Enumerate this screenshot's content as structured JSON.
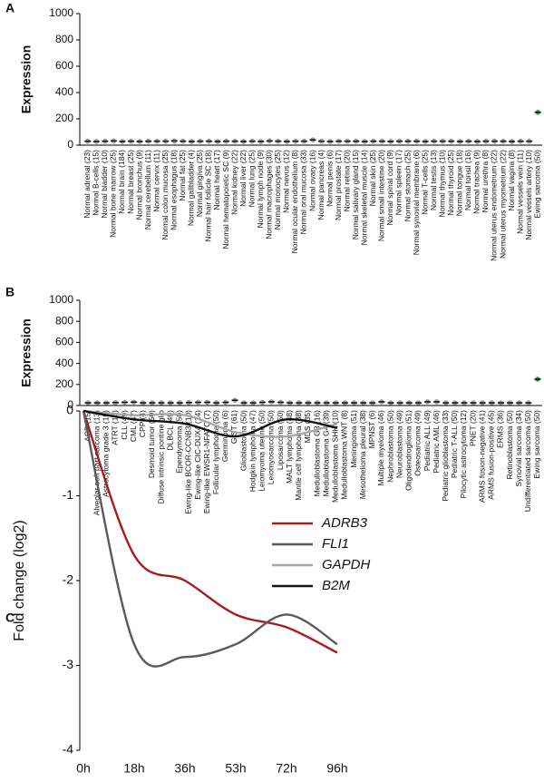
{
  "chart_data": [
    {
      "type": "strip",
      "panel_label": "A",
      "y_label": "Expression",
      "categories": [
        "Normal adrenal (23)",
        "Normal B-cells (15)",
        "Normal bladder (10)",
        "Normal bone marrow (25)",
        "Normal brain (184)",
        "Normal breast (25)",
        "Normal bronchus (9)",
        "Normal cerebellum (11)",
        "Normal cervix (11)",
        "Normal colon mucosa (25)",
        "Normal esophagus (18)",
        "Normal fat (25)",
        "Normal gallbladder (4)",
        "Normal gingiva (25)",
        "Normal hair follicle SC (18)",
        "Normal heart (17)",
        "Normal hematopoietic SC (9)",
        "Normal kidney (22)",
        "Normal liver (22)",
        "Normal lung (25)",
        "Normal lymph node (9)",
        "Normal macrophages (30)",
        "Normal monocytes (25)",
        "Normal nevus (12)",
        "Normal ocular endothelium (8)",
        "Normal oral mucosa (33)",
        "Normal ovary (16)",
        "Normal pancreas (4)",
        "Normal penis (6)",
        "Normal prostate (17)",
        "Normal retina (20)",
        "Normal salivary gland (15)",
        "Normal skeletal muscle (14)",
        "Normal skin (25)",
        "Normal small intestine (20)",
        "Normal spinal cord (9)",
        "Normal spleen (17)",
        "Normal stomach (25)",
        "Normal synovial membrane (6)",
        "Normal T-cells (25)",
        "Normal testis (13)",
        "Normal thymus (10)",
        "Normal thyroid (25)",
        "Normal tongue (18)",
        "Normal tonsil (16)",
        "Normal trachea (9)",
        "Normal urethra (8)",
        "Normal uterus endometrium (22)",
        "Normal uterus myometrium (22)",
        "Normal vagina (8)",
        "Normal vessels vein (11)",
        "Normal vessels artery (10)",
        "Ewing sarcoma (50)"
      ],
      "values": [
        30,
        28,
        30,
        32,
        28,
        30,
        28,
        30,
        30,
        30,
        32,
        30,
        28,
        30,
        30,
        28,
        30,
        30,
        28,
        30,
        28,
        32,
        30,
        28,
        30,
        30,
        40,
        30,
        28,
        30,
        30,
        30,
        28,
        30,
        30,
        28,
        30,
        30,
        30,
        28,
        30,
        30,
        30,
        28,
        30,
        28,
        30,
        30,
        30,
        28,
        30,
        30,
        250
      ],
      "colors": [
        "#a0a0a0",
        "#a0a0a0",
        "#a0a0a0",
        "#a0a0a0",
        "#a0a0a0",
        "#a0a0a0",
        "#a0a0a0",
        "#a0a0a0",
        "#a0a0a0",
        "#a0a0a0",
        "#a0a0a0",
        "#a0a0a0",
        "#a0a0a0",
        "#a0a0a0",
        "#a0a0a0",
        "#a0a0a0",
        "#a0a0a0",
        "#a0a0a0",
        "#a0a0a0",
        "#a0a0a0",
        "#a0a0a0",
        "#a0a0a0",
        "#a0a0a0",
        "#a0a0a0",
        "#a0a0a0",
        "#a0a0a0",
        "#a0a0a0",
        "#a0a0a0",
        "#a0a0a0",
        "#a0a0a0",
        "#a0a0a0",
        "#a0a0a0",
        "#a0a0a0",
        "#a0a0a0",
        "#a0a0a0",
        "#a0a0a0",
        "#a0a0a0",
        "#a0a0a0",
        "#a0a0a0",
        "#a0a0a0",
        "#a0a0a0",
        "#a0a0a0",
        "#a0a0a0",
        "#a0a0a0",
        "#a0a0a0",
        "#a0a0a0",
        "#a0a0a0",
        "#a0a0a0",
        "#a0a0a0",
        "#a0a0a0",
        "#a0a0a0",
        "#a0a0a0",
        "#2ca642"
      ],
      "ylim": [
        0,
        1000
      ],
      "yticks": [
        0,
        200,
        400,
        600,
        800,
        1000
      ]
    },
    {
      "type": "strip",
      "panel_label": "B",
      "y_label": "Expression",
      "categories": [
        "ACP (15)",
        "Alveolar soft part sarcoma (13)",
        "Astrocytoma grade 3 (15)",
        "ATRT (16)",
        "CLL (49)",
        "CML (47)",
        "CPP (4)",
        "Desmoid tumor (50)",
        "Diffuse intrinsic pontine glio",
        "DLBCL (49)",
        "Ependymoma (50)",
        "Ewing-like BCOR-CCNB3 (10)",
        "Ewing-like CIC-DUX4 (14)",
        "Ewing-like EWSR1-NFATC (7)",
        "Follicular lymphoma (50)",
        "Germinoma (6)",
        "GIST (61)",
        "Glioblastoma (50)",
        "Hodgkin lymphoma (47)",
        "Leiomyoma uterine (50)",
        "Leiomyosarcoma (50)",
        "Liposarcoma (50)",
        "MALT lymphoma (48)",
        "Mantle cell lymphoma (38)",
        "MDS (35)",
        "Medulloblastoma G3 (16)",
        "Medulloblastoma G4 (39)",
        "Medulloblastoma SHH (10)",
        "Medulloblastoma WNT (8)",
        "Meningioma (51)",
        "Mesothelioma pleural (38)",
        "MPNST (6)",
        "Multiple myeloma (46)",
        "Nephroblastoma (50)",
        "Neuroblastoma (49)",
        "Oligodendroglioma (51)",
        "Osteosarcoma (49)",
        "Pediatric ALL (49)",
        "Pediatric AML (46)",
        "Pediatric glioblastoma (33)",
        "Pediatric T-ALL (50)",
        "Pilocytic astrocytoma (12)",
        "PNET (20)",
        "ARMS fusion-negative (41)",
        "ARMS fusion-positive (45)",
        "ERMS (36)",
        "Retinoblastoma (50)",
        "Synovial sarcoma (34)",
        "Undifferentiated sarcoma (50)",
        "Ewing sarcoma (50)"
      ],
      "values": [
        25,
        25,
        25,
        28,
        30,
        32,
        25,
        25,
        25,
        25,
        25,
        28,
        30,
        30,
        25,
        30,
        50,
        25,
        25,
        30,
        35,
        30,
        25,
        25,
        25,
        25,
        25,
        25,
        25,
        25,
        25,
        25,
        35,
        25,
        25,
        25,
        25,
        35,
        35,
        25,
        25,
        25,
        25,
        25,
        25,
        25,
        25,
        25,
        25,
        250
      ],
      "colors": [
        "#a0a0a0",
        "#a0a0a0",
        "#a0a0a0",
        "#a0a0a0",
        "#a0a0a0",
        "#a0a0a0",
        "#a0a0a0",
        "#a0a0a0",
        "#a0a0a0",
        "#a0a0a0",
        "#a0a0a0",
        "#a0a0a0",
        "#a0a0a0",
        "#a0a0a0",
        "#a0a0a0",
        "#a0a0a0",
        "#a0a0a0",
        "#a0a0a0",
        "#a0a0a0",
        "#a0a0a0",
        "#a0a0a0",
        "#a0a0a0",
        "#a0a0a0",
        "#a0a0a0",
        "#a0a0a0",
        "#a0a0a0",
        "#a0a0a0",
        "#a0a0a0",
        "#a0a0a0",
        "#a0a0a0",
        "#a0a0a0",
        "#a0a0a0",
        "#a0a0a0",
        "#a0a0a0",
        "#a0a0a0",
        "#a0a0a0",
        "#a0a0a0",
        "#a0a0a0",
        "#a0a0a0",
        "#a0a0a0",
        "#a0a0a0",
        "#a0a0a0",
        "#a0a0a0",
        "#a0a0a0",
        "#a0a0a0",
        "#a0a0a0",
        "#a0a0a0",
        "#a0a0a0",
        "#a0a0a0",
        "#2ca642"
      ],
      "ylim": [
        0,
        1000
      ],
      "yticks": [
        0,
        200,
        400,
        600,
        800,
        1000
      ]
    },
    {
      "type": "line",
      "panel_label": "C",
      "y_label": "Fold change (log2)",
      "categories": [
        "0h",
        "18h",
        "36h",
        "53h",
        "72h",
        "96h"
      ],
      "series": [
        {
          "name": "ADRB3",
          "color": "#a51d1d",
          "values": [
            0,
            -1.7,
            -2.0,
            -2.4,
            -2.55,
            -2.85
          ]
        },
        {
          "name": "FLI1",
          "color": "#5a5a5a",
          "values": [
            0,
            -2.75,
            -2.9,
            -2.75,
            -2.4,
            -2.75
          ]
        },
        {
          "name": "GAPDH",
          "color": "#a8a8a8",
          "values": [
            0,
            -0.05,
            -0.05,
            -0.25,
            -0.3,
            -0.15
          ]
        },
        {
          "name": "B2M",
          "color": "#111111",
          "values": [
            0,
            -0.1,
            -0.15,
            -0.3,
            -0.1,
            -0.2
          ]
        }
      ],
      "ylim": [
        -4,
        0
      ],
      "yticks": [
        0,
        -1,
        -2,
        -3,
        -4
      ]
    }
  ]
}
